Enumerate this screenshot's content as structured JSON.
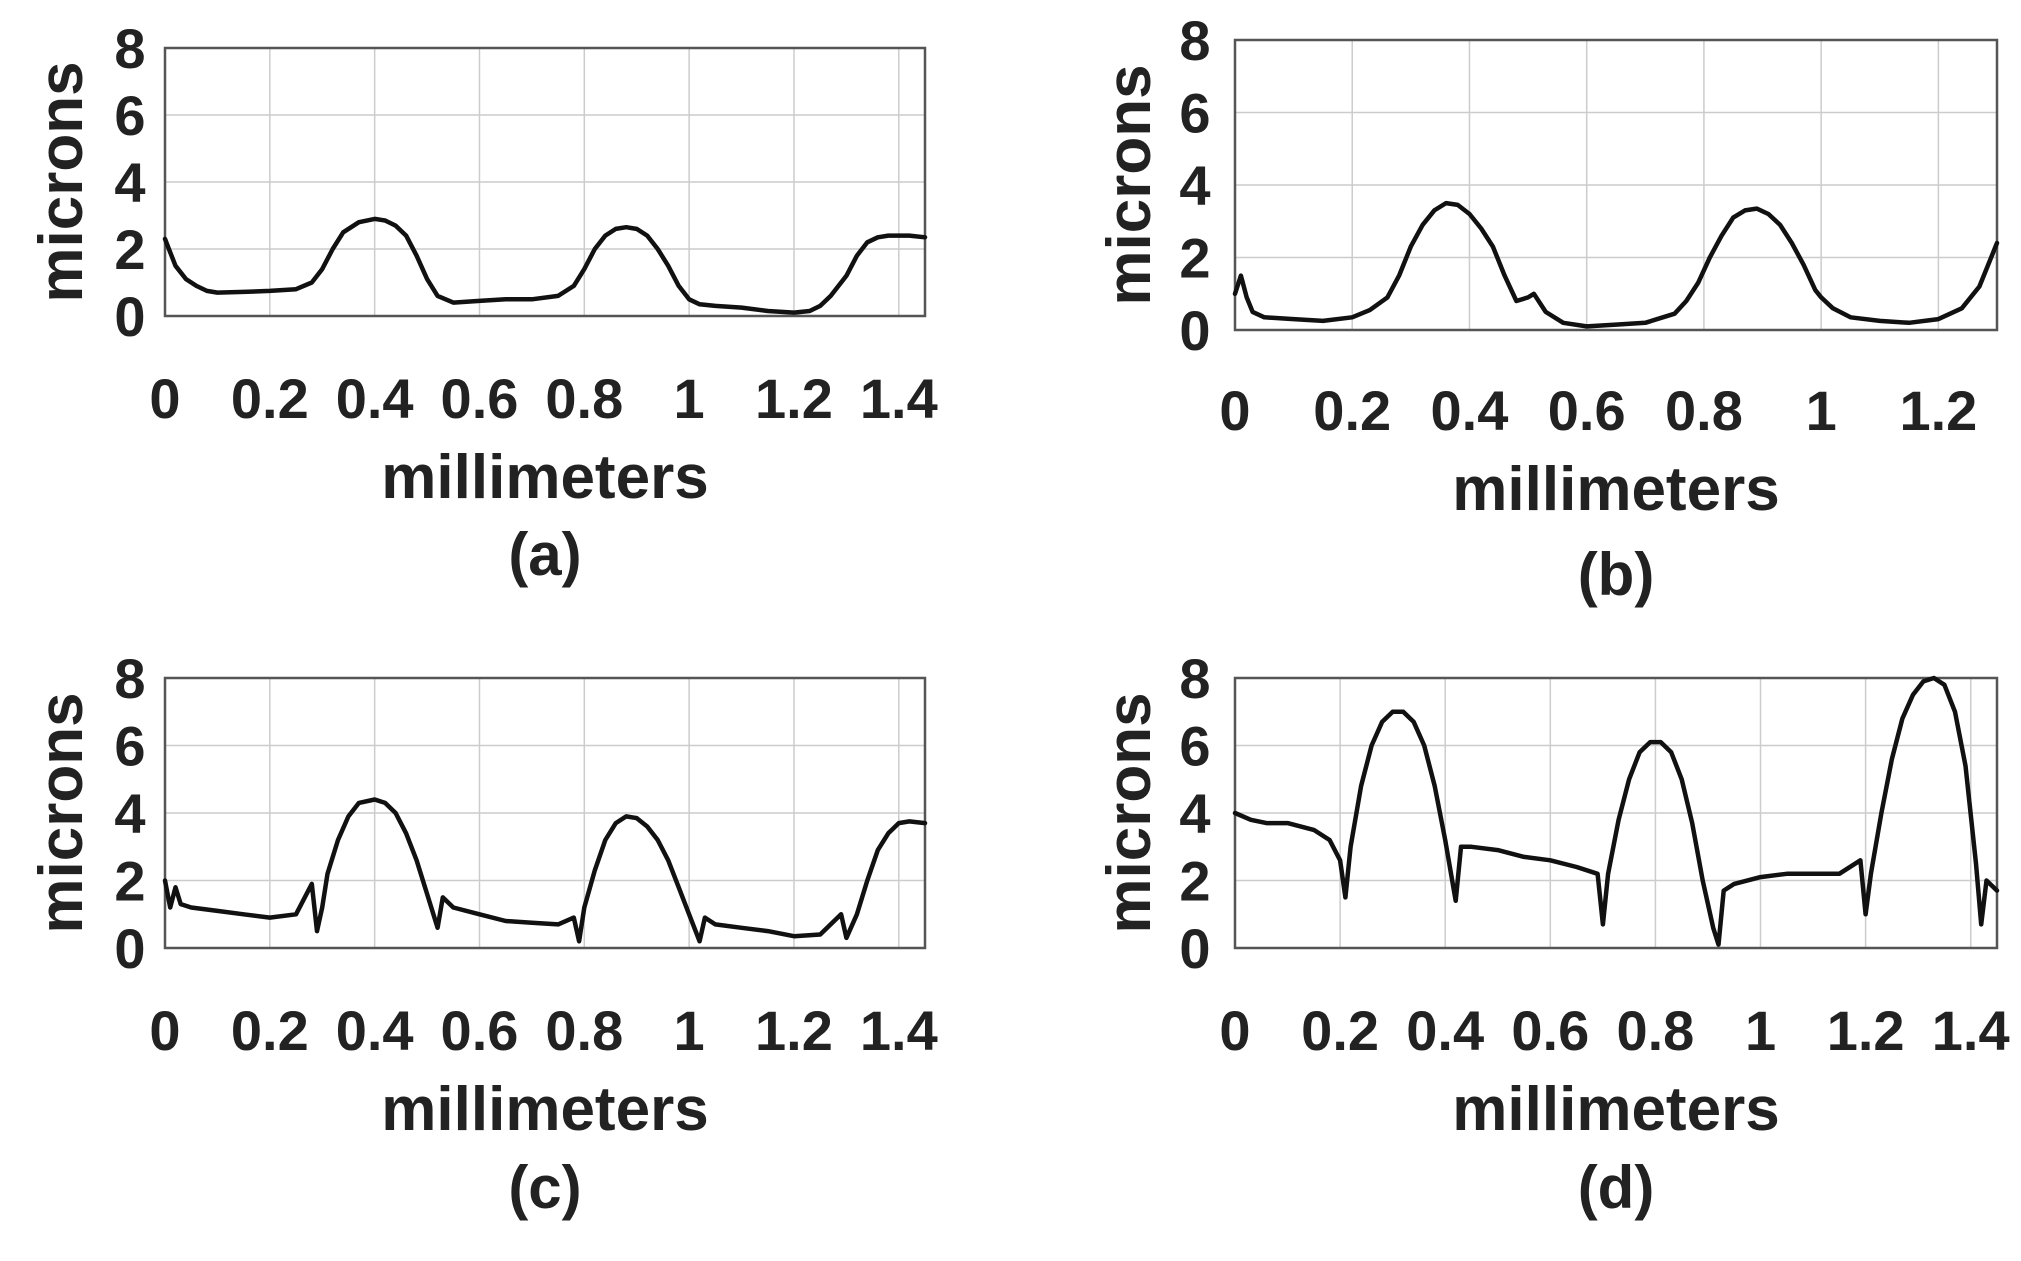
{
  "chart_data": [
    {
      "type": "line",
      "caption": "(a)",
      "xlabel": "millimeters",
      "ylabel": "microns",
      "xlim": [
        0,
        1.45
      ],
      "ylim": [
        0,
        8
      ],
      "xticks": [
        0,
        0.2,
        0.4,
        0.6,
        0.8,
        1,
        1.2,
        1.4
      ],
      "xtick_labels": [
        "0",
        "0.2",
        "0.4",
        "0.6",
        "0.8",
        "1",
        "1.2",
        "1.4"
      ],
      "yticks": [
        0,
        2,
        4,
        6,
        8
      ],
      "ytick_labels": [
        "0",
        "2",
        "4",
        "6",
        "8"
      ],
      "grid": true,
      "series": [
        {
          "x": [
            0,
            0.01,
            0.02,
            0.04,
            0.06,
            0.08,
            0.1,
            0.15,
            0.2,
            0.25,
            0.28,
            0.3,
            0.32,
            0.34,
            0.37,
            0.4,
            0.42,
            0.44,
            0.46,
            0.48,
            0.5,
            0.52,
            0.55,
            0.6,
            0.65,
            0.7,
            0.75,
            0.78,
            0.8,
            0.82,
            0.84,
            0.86,
            0.88,
            0.9,
            0.92,
            0.94,
            0.96,
            0.98,
            1.0,
            1.02,
            1.05,
            1.1,
            1.15,
            1.2,
            1.23,
            1.25,
            1.27,
            1.3,
            1.32,
            1.34,
            1.36,
            1.38,
            1.4,
            1.42,
            1.45
          ],
          "y": [
            2.3,
            1.9,
            1.5,
            1.1,
            0.9,
            0.75,
            0.7,
            0.72,
            0.75,
            0.8,
            1.0,
            1.4,
            2.0,
            2.5,
            2.8,
            2.9,
            2.85,
            2.7,
            2.4,
            1.8,
            1.1,
            0.6,
            0.4,
            0.45,
            0.5,
            0.5,
            0.6,
            0.9,
            1.4,
            2.0,
            2.4,
            2.6,
            2.65,
            2.6,
            2.4,
            2.0,
            1.5,
            0.9,
            0.5,
            0.35,
            0.3,
            0.25,
            0.15,
            0.1,
            0.15,
            0.3,
            0.6,
            1.2,
            1.8,
            2.2,
            2.35,
            2.4,
            2.4,
            2.4,
            2.35
          ]
        }
      ]
    },
    {
      "type": "line",
      "caption": "(b)",
      "xlabel": "millimeters",
      "ylabel": "microns",
      "xlim": [
        0,
        1.3
      ],
      "ylim": [
        0,
        8
      ],
      "xticks": [
        0,
        0.2,
        0.4,
        0.6,
        0.8,
        1,
        1.2
      ],
      "xtick_labels": [
        "0",
        "0.2",
        "0.4",
        "0.6",
        "0.8",
        "1",
        "1.2"
      ],
      "yticks": [
        0,
        2,
        4,
        6,
        8
      ],
      "ytick_labels": [
        "0",
        "2",
        "4",
        "6",
        "8"
      ],
      "grid": true,
      "series": [
        {
          "x": [
            0,
            0.01,
            0.02,
            0.03,
            0.05,
            0.1,
            0.15,
            0.2,
            0.23,
            0.26,
            0.28,
            0.3,
            0.32,
            0.34,
            0.36,
            0.38,
            0.4,
            0.42,
            0.44,
            0.46,
            0.48,
            0.5,
            0.51,
            0.53,
            0.56,
            0.6,
            0.65,
            0.7,
            0.75,
            0.77,
            0.79,
            0.81,
            0.83,
            0.85,
            0.87,
            0.89,
            0.91,
            0.93,
            0.95,
            0.97,
            0.99,
            1.0,
            1.02,
            1.05,
            1.1,
            1.15,
            1.2,
            1.24,
            1.27,
            1.3
          ],
          "y": [
            1.0,
            1.5,
            0.9,
            0.5,
            0.35,
            0.3,
            0.25,
            0.35,
            0.55,
            0.9,
            1.5,
            2.3,
            2.9,
            3.3,
            3.5,
            3.45,
            3.2,
            2.8,
            2.3,
            1.5,
            0.8,
            0.9,
            1.0,
            0.5,
            0.2,
            0.1,
            0.15,
            0.2,
            0.45,
            0.8,
            1.3,
            2.0,
            2.6,
            3.1,
            3.3,
            3.35,
            3.2,
            2.9,
            2.4,
            1.8,
            1.1,
            0.9,
            0.6,
            0.35,
            0.25,
            0.2,
            0.3,
            0.6,
            1.2,
            2.4
          ]
        }
      ]
    },
    {
      "type": "line",
      "caption": "(c)",
      "xlabel": "millimeters",
      "ylabel": "microns",
      "xlim": [
        0,
        1.45
      ],
      "ylim": [
        0,
        8
      ],
      "xticks": [
        0,
        0.2,
        0.4,
        0.6,
        0.8,
        1,
        1.2,
        1.4
      ],
      "xtick_labels": [
        "0",
        "0.2",
        "0.4",
        "0.6",
        "0.8",
        "1",
        "1.2",
        "1.4"
      ],
      "yticks": [
        0,
        2,
        4,
        6,
        8
      ],
      "ytick_labels": [
        "0",
        "2",
        "4",
        "6",
        "8"
      ],
      "grid": true,
      "series": [
        {
          "x": [
            0,
            0.01,
            0.02,
            0.03,
            0.05,
            0.1,
            0.15,
            0.2,
            0.25,
            0.28,
            0.29,
            0.3,
            0.31,
            0.33,
            0.35,
            0.37,
            0.4,
            0.42,
            0.44,
            0.46,
            0.48,
            0.5,
            0.52,
            0.53,
            0.55,
            0.6,
            0.65,
            0.7,
            0.75,
            0.78,
            0.79,
            0.8,
            0.82,
            0.84,
            0.86,
            0.88,
            0.9,
            0.92,
            0.94,
            0.96,
            0.98,
            1.0,
            1.02,
            1.03,
            1.05,
            1.1,
            1.15,
            1.2,
            1.25,
            1.29,
            1.3,
            1.32,
            1.34,
            1.36,
            1.38,
            1.4,
            1.42,
            1.45
          ],
          "y": [
            2.0,
            1.2,
            1.8,
            1.3,
            1.2,
            1.1,
            1.0,
            0.9,
            1.0,
            1.9,
            0.5,
            1.2,
            2.2,
            3.2,
            3.9,
            4.3,
            4.4,
            4.3,
            4.0,
            3.4,
            2.6,
            1.6,
            0.6,
            1.5,
            1.2,
            1.0,
            0.8,
            0.75,
            0.7,
            0.9,
            0.2,
            1.2,
            2.3,
            3.2,
            3.7,
            3.9,
            3.85,
            3.6,
            3.2,
            2.6,
            1.8,
            1.0,
            0.2,
            0.9,
            0.7,
            0.6,
            0.5,
            0.35,
            0.4,
            1.0,
            0.3,
            1.0,
            2.0,
            2.9,
            3.4,
            3.7,
            3.75,
            3.7
          ]
        }
      ]
    },
    {
      "type": "line",
      "caption": "(d)",
      "xlabel": "millimeters",
      "ylabel": "microns",
      "xlim": [
        0,
        1.45
      ],
      "ylim": [
        0,
        8
      ],
      "xticks": [
        0,
        0.2,
        0.4,
        0.6,
        0.8,
        1,
        1.2,
        1.4
      ],
      "xtick_labels": [
        "0",
        "0.2",
        "0.4",
        "0.6",
        "0.8",
        "1",
        "1.2",
        "1.4"
      ],
      "yticks": [
        0,
        2,
        4,
        6,
        8
      ],
      "ytick_labels": [
        "0",
        "2",
        "4",
        "6",
        "8"
      ],
      "grid": true,
      "series": [
        {
          "x": [
            0,
            0.03,
            0.06,
            0.1,
            0.15,
            0.18,
            0.2,
            0.21,
            0.22,
            0.24,
            0.26,
            0.28,
            0.3,
            0.32,
            0.34,
            0.36,
            0.38,
            0.4,
            0.42,
            0.43,
            0.45,
            0.5,
            0.55,
            0.6,
            0.65,
            0.69,
            0.7,
            0.71,
            0.73,
            0.75,
            0.77,
            0.79,
            0.81,
            0.83,
            0.85,
            0.87,
            0.89,
            0.91,
            0.92,
            0.93,
            0.95,
            1.0,
            1.05,
            1.1,
            1.15,
            1.19,
            1.2,
            1.21,
            1.23,
            1.25,
            1.27,
            1.29,
            1.31,
            1.33,
            1.35,
            1.37,
            1.39,
            1.41,
            1.42,
            1.43,
            1.45
          ],
          "y": [
            4.0,
            3.8,
            3.7,
            3.7,
            3.5,
            3.2,
            2.6,
            1.5,
            3.0,
            4.8,
            6.0,
            6.7,
            7.0,
            7.0,
            6.7,
            6.0,
            4.8,
            3.2,
            1.4,
            3.0,
            3.0,
            2.9,
            2.7,
            2.6,
            2.4,
            2.2,
            0.7,
            2.2,
            3.8,
            5.0,
            5.8,
            6.1,
            6.1,
            5.8,
            5.0,
            3.7,
            2.0,
            0.6,
            0.1,
            1.7,
            1.9,
            2.1,
            2.2,
            2.2,
            2.2,
            2.6,
            1.0,
            2.2,
            4.0,
            5.6,
            6.8,
            7.5,
            7.9,
            8.0,
            7.8,
            7.0,
            5.4,
            2.5,
            0.7,
            2.0,
            1.7
          ]
        }
      ]
    }
  ]
}
